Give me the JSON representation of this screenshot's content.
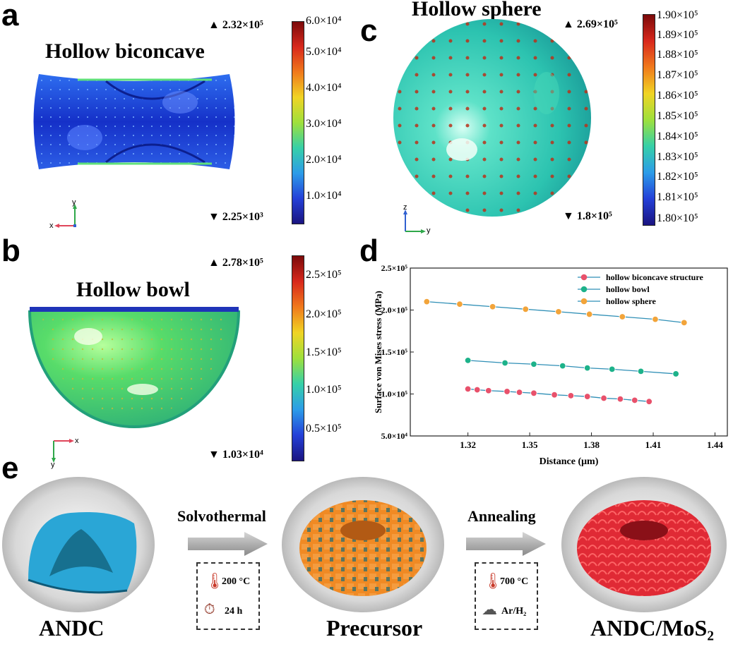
{
  "panels": {
    "a": {
      "label": "a",
      "title": "Hollow biconcave",
      "max": "2.32×10⁵",
      "min": "2.25×10³",
      "colorbar_ticks": [
        "6.0×10⁴",
        "5.0×10⁴",
        "4.0×10⁴",
        "3.0×10⁴",
        "2.0×10⁴",
        "1.0×10⁴"
      ],
      "axes": {
        "v": "y",
        "h": "x"
      }
    },
    "b": {
      "label": "b",
      "title": "Hollow bowl",
      "max": "2.78×10⁵",
      "min": "1.03×10⁴",
      "colorbar_ticks": [
        "2.5×10⁵",
        "2.0×10⁵",
        "1.5×10⁵",
        "1.0×10⁵",
        "0.5×10⁵"
      ],
      "axes": {
        "v": "y",
        "h": "x"
      }
    },
    "c": {
      "label": "c",
      "title": "Hollow sphere",
      "max": "2.69×10⁵",
      "min": "1.8×10⁵",
      "colorbar_ticks": [
        "1.90×10⁵",
        "1.89×10⁵",
        "1.88×10⁵",
        "1.87×10⁵",
        "1.86×10⁵",
        "1.85×10⁵",
        "1.84×10⁵",
        "1.83×10⁵",
        "1.82×10⁵",
        "1.81×10⁵",
        "1.80×10⁵"
      ],
      "axes": {
        "v": "z",
        "h": "y"
      }
    },
    "d": {
      "label": "d"
    },
    "e": {
      "label": "e",
      "stage1": "ANDC",
      "stage2": "Precursor",
      "stage3": "ANDC/MoS₂",
      "step1": "Solvothermal",
      "step2": "Annealing",
      "step1_temp": "200 °C",
      "step1_time": "24 h",
      "step2_temp": "700 °C",
      "step2_gas": "Ar/H₂"
    }
  },
  "chart_data": {
    "type": "line",
    "xlabel": "Distance (μm)",
    "ylabel": "Surface von Mises stress (MPa)",
    "xlim": [
      1.292,
      1.446
    ],
    "ylim": [
      50000,
      250000
    ],
    "x_ticks": [
      "1.32",
      "1.35",
      "1.38",
      "1.41",
      "1.44"
    ],
    "y_ticks": [
      "5.0×10⁴",
      "1.0×10⁵",
      "1.5×10⁵",
      "2.0×10⁵",
      "2.5×10⁵"
    ],
    "legend_position": "top-right",
    "grid": false,
    "series": [
      {
        "name": "hollow biconcave structure",
        "color": "#e8516b",
        "x": [
          1.32,
          1.3245,
          1.33,
          1.339,
          1.345,
          1.352,
          1.362,
          1.37,
          1.378,
          1.386,
          1.394,
          1.401,
          1.408
        ],
        "y": [
          106000,
          105000,
          104000,
          103000,
          102000,
          101000,
          99000,
          98000,
          97000,
          95000,
          94000,
          92500,
          91000
        ]
      },
      {
        "name": "hollow bowl",
        "color": "#1db28a",
        "x": [
          1.32,
          1.338,
          1.352,
          1.366,
          1.378,
          1.39,
          1.404,
          1.421
        ],
        "y": [
          140000,
          137000,
          135500,
          133500,
          131000,
          129500,
          127000,
          124000
        ]
      },
      {
        "name": "hollow sphere",
        "color": "#f2a43a",
        "x": [
          1.3,
          1.316,
          1.332,
          1.348,
          1.364,
          1.379,
          1.395,
          1.411,
          1.425
        ],
        "y": [
          210000,
          207000,
          204000,
          201000,
          198000,
          195000,
          192000,
          189000,
          185000
        ]
      }
    ]
  },
  "colors": {
    "biconcave_body": "#1a3bd6",
    "bowl_body": "#3bd26a",
    "sphere_body": "#2ec9b0",
    "andc": "#2aa6d6",
    "precursor": "#f08a24",
    "mos2": "#e02a35"
  }
}
